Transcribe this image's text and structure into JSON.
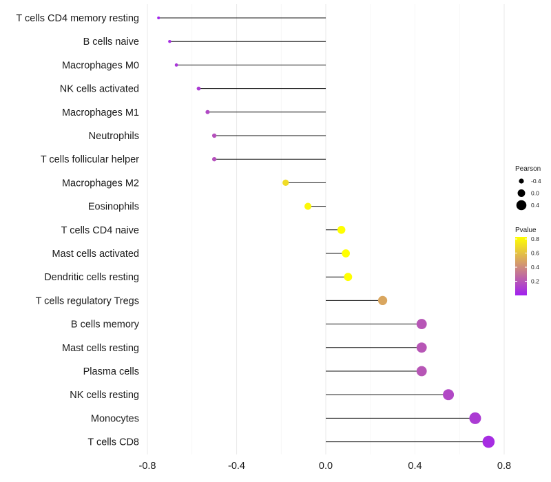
{
  "chart_data": {
    "type": "lollipop",
    "xlim": [
      -0.82,
      0.84
    ],
    "x_ticks": [
      -0.8,
      -0.4,
      0.0,
      0.4,
      0.8
    ],
    "x_tick_labels": [
      "-0.8",
      "-0.4",
      "0.0",
      "0.4",
      "0.8"
    ],
    "grid": true,
    "legend_position": "right",
    "categories": [
      "T cells CD4 memory resting",
      "B cells naive",
      "Macrophages M0",
      "NK cells activated",
      "Macrophages M1",
      "Neutrophils",
      "T cells follicular helper",
      "Macrophages M2",
      "Eosinophils",
      "T cells CD4 naive",
      "Mast cells activated",
      "Dendritic cells resting",
      "T cells regulatory  Tregs",
      "B cells memory",
      "Mast cells resting",
      "Plasma cells",
      "NK cells resting",
      "Monocytes",
      "T cells CD8"
    ],
    "pearson": [
      -0.75,
      -0.7,
      -0.67,
      -0.57,
      -0.53,
      -0.5,
      -0.5,
      -0.18,
      -0.08,
      0.07,
      0.09,
      0.1,
      0.255,
      0.43,
      0.43,
      0.43,
      0.55,
      0.67,
      0.73
    ],
    "pvalue": [
      0.02,
      0.05,
      0.08,
      0.1,
      0.15,
      0.18,
      0.18,
      0.7,
      0.8,
      0.83,
      0.83,
      0.83,
      0.5,
      0.2,
      0.2,
      0.2,
      0.15,
      0.1,
      0.05
    ],
    "legend_size": {
      "title": "Pearson",
      "values": [
        -0.4,
        0.0,
        0.4
      ],
      "labels": [
        "-0.4",
        "0.0",
        "0.4"
      ]
    },
    "legend_color": {
      "title": "Pvalue",
      "range": [
        0.0,
        0.83
      ],
      "ticks": [
        0.2,
        0.4,
        0.6,
        0.8
      ],
      "labels": [
        "0.2",
        "0.4",
        "0.6",
        "0.8"
      ],
      "color_low": "#a020f0",
      "color_high": "#ffff00"
    }
  }
}
